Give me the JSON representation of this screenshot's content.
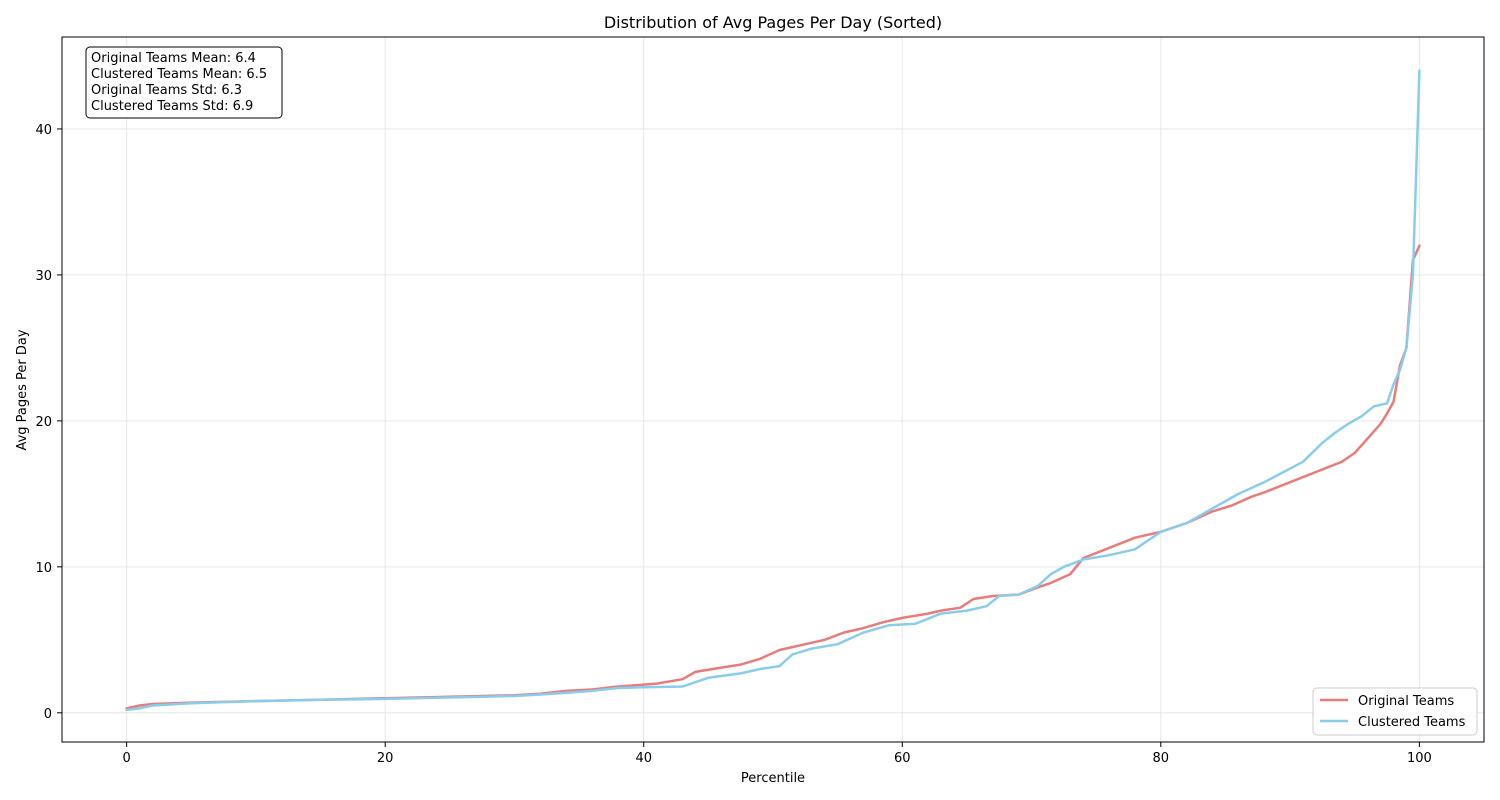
{
  "chart_data": {
    "type": "line",
    "title": "Distribution of Avg Pages Per Day (Sorted)",
    "xlabel": "Percentile",
    "ylabel": "Avg Pages Per Day",
    "xlim": [
      -5,
      105
    ],
    "ylim": [
      -2,
      46.3
    ],
    "xticks": [
      0,
      20,
      40,
      60,
      80,
      100
    ],
    "yticks": [
      0,
      10,
      20,
      30,
      40
    ],
    "grid": true,
    "legend_position": "lower-right",
    "stats_box": [
      "Original Teams Mean: 6.4",
      "Clustered Teams Mean: 6.5",
      "Original Teams Std: 6.3",
      "Clustered Teams Std: 6.9"
    ],
    "series": [
      {
        "name": "Original Teams",
        "color": "#e67c7c",
        "x": [
          0,
          1,
          2,
          5,
          10,
          15,
          20,
          25,
          30,
          32,
          34,
          36,
          38,
          39.5,
          41,
          43,
          44,
          46,
          47.5,
          49,
          50.5,
          51.5,
          52.5,
          54,
          55.5,
          57,
          58.5,
          60,
          62,
          63,
          64.5,
          65.5,
          67,
          69,
          70.5,
          71.5,
          73,
          74,
          76,
          78,
          80,
          82,
          84,
          85.5,
          87,
          88,
          90,
          92,
          94,
          95,
          96,
          97,
          97.5,
          98,
          98.5,
          99,
          99.5,
          100
        ],
        "y": [
          0.3,
          0.5,
          0.6,
          0.7,
          0.8,
          0.9,
          1.0,
          1.1,
          1.2,
          1.3,
          1.5,
          1.6,
          1.8,
          1.9,
          2.0,
          2.3,
          2.8,
          3.1,
          3.3,
          3.7,
          4.3,
          4.5,
          4.7,
          5.0,
          5.5,
          5.8,
          6.2,
          6.5,
          6.8,
          7.0,
          7.2,
          7.8,
          8.0,
          8.1,
          8.6,
          8.9,
          9.5,
          10.6,
          11.3,
          12.0,
          12.4,
          13.0,
          13.8,
          14.2,
          14.8,
          15.1,
          15.8,
          16.5,
          17.2,
          17.8,
          18.8,
          19.8,
          20.5,
          21.3,
          23.8,
          25.0,
          31.0,
          32.0
        ]
      },
      {
        "name": "Clustered Teams",
        "color": "#89cdeb",
        "x": [
          0,
          1,
          2,
          5,
          10,
          15,
          20,
          25,
          30,
          33,
          36,
          38,
          40,
          43,
          45,
          47.5,
          49,
          50.5,
          51.5,
          53,
          55,
          57,
          59,
          61,
          63,
          65,
          66.5,
          67.5,
          69,
          70.5,
          71.5,
          72.5,
          74,
          76,
          78,
          80,
          82,
          84,
          86,
          88,
          89.5,
          91,
          92.5,
          93.5,
          94.5,
          95.5,
          96.5,
          97.5,
          98,
          98.5,
          99,
          99.5,
          100
        ],
        "y": [
          0.2,
          0.3,
          0.5,
          0.65,
          0.8,
          0.9,
          0.95,
          1.05,
          1.15,
          1.3,
          1.5,
          1.7,
          1.75,
          1.8,
          2.4,
          2.7,
          3.0,
          3.2,
          4.0,
          4.4,
          4.7,
          5.5,
          6.0,
          6.1,
          6.8,
          7.0,
          7.3,
          8.0,
          8.1,
          8.7,
          9.5,
          10.0,
          10.5,
          10.8,
          11.2,
          12.4,
          13.0,
          14.0,
          15.0,
          15.8,
          16.5,
          17.2,
          18.5,
          19.2,
          19.8,
          20.3,
          21.0,
          21.2,
          22.5,
          23.5,
          25.0,
          30.0,
          44.0
        ]
      }
    ]
  }
}
